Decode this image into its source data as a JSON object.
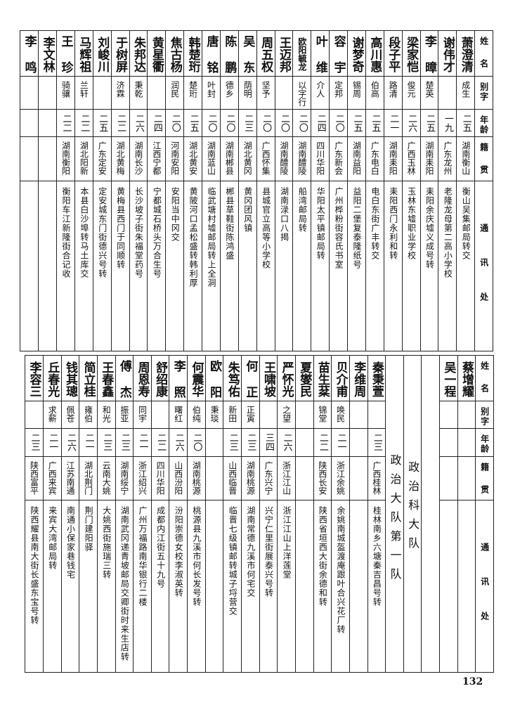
{
  "headers": [
    "姓名",
    "别字",
    "年龄",
    "籍贯",
    "通讯处"
  ],
  "top_table": {
    "rows": [
      {
        "name": "萧澄清",
        "alias": "成生",
        "age": "二五",
        "native": "湖南衡山",
        "address": "衡山吴集邮局转交"
      },
      {
        "name": "谢伟才",
        "alias": "",
        "age": "一九",
        "native": "广东龙州",
        "address": "老隆龙母第二高小学校"
      },
      {
        "name": "李暲",
        "alias": "楚英",
        "age": "二五",
        "native": "湖南耒阳",
        "address": "耒阳余庆墟义成号转"
      },
      {
        "name": "梁家恺",
        "alias": "俊元",
        "age": "二六",
        "native": "广西玉林",
        "address": "玉林东墟职业学校"
      },
      {
        "name": "段子平",
        "alias": "路清",
        "age": "二一",
        "native": "湖南耒阳",
        "address": "耒阳西门永利和转"
      },
      {
        "name": "高川惠",
        "alias": "伯高",
        "age": "二五",
        "native": "广东电白",
        "address": "电白东街广丰转交"
      },
      {
        "name": "谢梦奇",
        "alias": "锡周",
        "age": "二五",
        "native": "湖南益阳",
        "address": "益阳二堡复泰隆纸号"
      },
      {
        "name": "容宇",
        "alias": "定邦",
        "age": "二〇",
        "native": "广东新会",
        "address": "广州桦粉街容氏书室"
      },
      {
        "name": "叶维",
        "alias": "介人",
        "age": "二四",
        "native": "四川华阳",
        "address": "华阳太平镇邮局转"
      },
      {
        "name": "欧阳毓龙",
        "alias": "以字行",
        "age": "二〇",
        "native": "湖南醴陵",
        "address": "船湾邮局转"
      },
      {
        "name": "王迈邦",
        "alias": "",
        "age": "二〇",
        "native": "湖南醴陵",
        "address": "湖南渌口八揭"
      },
      {
        "name": "周五权",
        "alias": "坚予",
        "age": "二〇",
        "native": "广西怀集",
        "address": "县城官立高等小学校"
      },
      {
        "name": "吴东",
        "alias": "荫明",
        "age": "二三",
        "native": "湖北黄冈",
        "address": "黄冈团风镇"
      },
      {
        "name": "陈鹏",
        "alias": "德乡",
        "age": "二〇",
        "native": "湖南郴县",
        "address": "郴县草鞋街陈鸿盛"
      },
      {
        "name": "唐铭",
        "alias": "叶封",
        "age": "二〇",
        "native": "湖南蓝山",
        "address": "临武塘村墟邮局转上全洞"
      },
      {
        "name": "韩楚珩",
        "alias": "楚珩",
        "age": "二五",
        "native": "湖北黄安",
        "address": "黄陂河口孟松盛转韩利厚"
      },
      {
        "name": "焦古杨",
        "alias": "润民",
        "age": "二〇",
        "native": "河南安阳",
        "address": "安阳当中冈交"
      },
      {
        "name": "黄星衢",
        "alias": "",
        "age": "二四",
        "native": "江西宁都",
        "address": "宁都城石桥头万合生号"
      },
      {
        "name": "朱邦达",
        "alias": "秉乾",
        "age": "二六",
        "native": "湖南长沙",
        "address": "长沙坡子街朱福堂药号"
      },
      {
        "name": "于树屏",
        "alias": "济霖",
        "age": "二二",
        "native": "湖北黄梅",
        "address": "黄梅县西门于同顺转"
      },
      {
        "name": "刘峻川",
        "alias": "",
        "age": "二五",
        "native": "广东定安",
        "address": "定安城东门街德兴号转"
      },
      {
        "name": "马辉祖",
        "alias": "兰轩",
        "age": "二二",
        "native": "湖北阳新",
        "address": "本县白沙埠转马土库交"
      },
      {
        "name": "王珍",
        "alias": "骑骧",
        "age": "二二",
        "native": "湖南衡阳",
        "address": "衡阳车江新隆街合记收"
      },
      {
        "name": "李文林",
        "alias": "",
        "age": "",
        "native": "",
        "address": ""
      },
      {
        "name": "李鸣",
        "alias": "",
        "age": "",
        "native": "",
        "address": ""
      }
    ]
  },
  "bottom_table": {
    "rows_before_section": [
      {
        "name": "蔡增耀",
        "alias": "",
        "age": "",
        "native": "",
        "address": ""
      },
      {
        "name": "吴一程",
        "alias": "",
        "age": "",
        "native": "",
        "address": ""
      }
    ],
    "section_title": "政治科大队",
    "subsection_title": "政治大队第一队",
    "rows": [
      {
        "name": "秦秉萱",
        "alias": "",
        "age": "二三",
        "native": "广西桂林",
        "address": "桂林南乡六塘秦吉昌号转"
      },
      {
        "name": "李维周",
        "alias": "",
        "age": "",
        "native": "",
        "address": ""
      },
      {
        "name": "贝介甫",
        "alias": "唤民",
        "age": "二一",
        "native": "浙江余姚",
        "address": "余姚南城盔渡庵跟叶合兴花厂转"
      },
      {
        "name": "苗生棻",
        "alias": "锦堂",
        "age": "二二",
        "native": "陕西长安",
        "address": "陕西省垣西大街余德和转"
      },
      {
        "name": "夏燮民",
        "alias": "",
        "age": "",
        "native": "",
        "address": ""
      },
      {
        "name": "严怀光",
        "alias": "之望",
        "age": "二六",
        "native": "浙江江山",
        "address": "浙江江山上洋莲堂"
      },
      {
        "name": "王啸坡",
        "alias": "",
        "age": "三四",
        "native": "广东兴宁",
        "address": "兴宁仁里街展泰兴号转"
      },
      {
        "name": "何正",
        "alias": "正寅",
        "age": "二三",
        "native": "湖南桃源",
        "address": "湖南常德九溪市何宅交"
      },
      {
        "name": "朱笃佑",
        "alias": "新田",
        "age": "二三",
        "native": "山西临晋",
        "address": "临晋七级镇邮转城子埒营交"
      },
      {
        "name": "欧阳",
        "alias": "秉琰",
        "age": "",
        "native": "",
        "address": ""
      },
      {
        "name": "何震华",
        "alias": "伯纯",
        "age": "二〇",
        "native": "湖南桃源",
        "address": "桃源县九溪市何长发号转"
      },
      {
        "name": "李照",
        "alias": "曙红",
        "age": "二六",
        "native": "山西汾阳",
        "address": "汾阳崇德女校李淑英转"
      },
      {
        "name": "舒绍康",
        "alias": "",
        "age": "二二",
        "native": "四川华阳",
        "address": "成都内江街五十九号"
      },
      {
        "name": "周恩寿",
        "alias": "同宇",
        "age": "二一",
        "native": "浙江绍兴",
        "address": "广州万福路南华银行二楼"
      },
      {
        "name": "傅杰",
        "alias": "振亚",
        "age": "二三",
        "native": "湖南绥宁",
        "address": "湖南武冈递青坡邮局交卿街时来生店转"
      },
      {
        "name": "王春鑫",
        "alias": "和光",
        "age": "二三",
        "native": "云南大姚",
        "address": "大姚西街施瑞三转"
      },
      {
        "name": "简立桂",
        "alias": "雍伯",
        "age": "二一",
        "native": "湖北荆门",
        "address": "荆门建阳驿"
      },
      {
        "name": "钱其璁",
        "alias": "佩苍",
        "age": "二六",
        "native": "江苏南通",
        "address": "南通小保家巷钱宅"
      },
      {
        "name": "丘春光",
        "alias": "求薪",
        "age": "二一",
        "native": "广西来宾",
        "address": "来宾大湾邮局转"
      },
      {
        "name": "李容三",
        "alias": "",
        "age": "二三",
        "native": "陕西富平",
        "address": "陕西耀县南大街长盛东宝号转"
      }
    ]
  },
  "page_number": "132"
}
